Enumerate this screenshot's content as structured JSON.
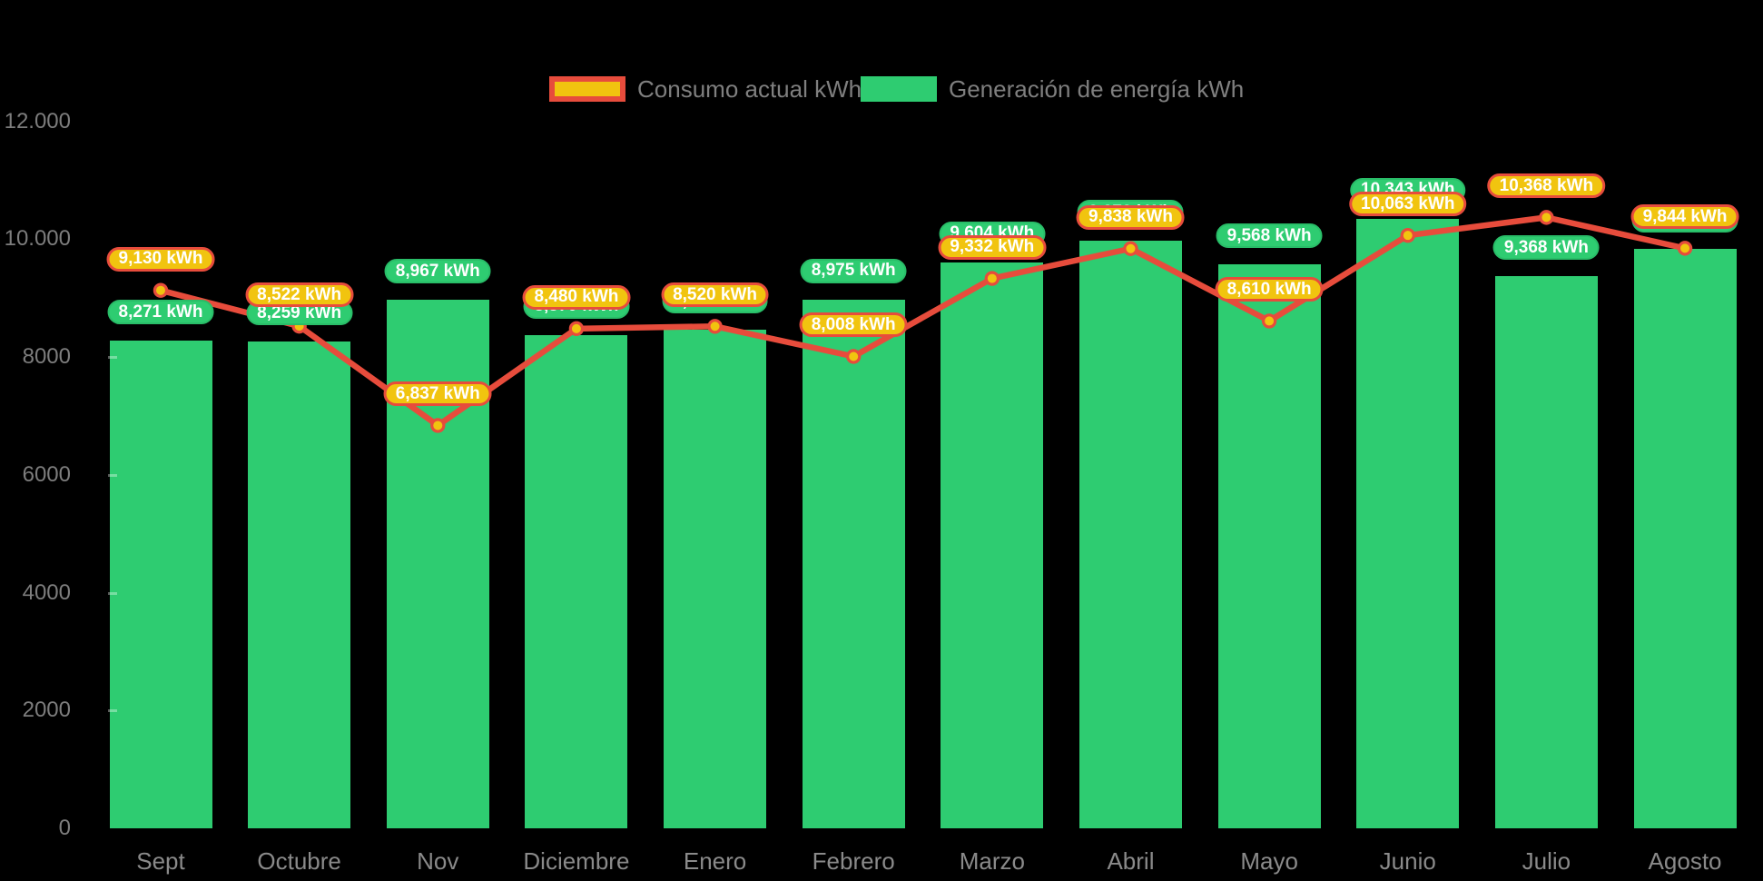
{
  "legend": {
    "items": [
      {
        "label": "Consumo actual kWh",
        "swatch_color": "#f1c40f",
        "swatch_border": "#e74c3c"
      },
      {
        "label": "Generación de energía kWh",
        "swatch_color": "#2ecc71",
        "swatch_border": null
      }
    ]
  },
  "chart_data": {
    "type": "bar",
    "subtype": "bar-line-combo",
    "title": "",
    "categories": [
      "Sept",
      "Octubre",
      "Nov",
      "Diciembre",
      "Enero",
      "Febrero",
      "Marzo",
      "Abril",
      "Mayo",
      "Junio",
      "Julio",
      "Agosto"
    ],
    "series": [
      {
        "name": "Consumo actual kWh",
        "type": "line",
        "line_color": "#e74c3c",
        "point_fill": "#f1c40f",
        "point_border": "#e74c3c",
        "values": [
          9130,
          8522,
          6837,
          8480,
          8520,
          8008,
          9332,
          9838,
          8610,
          10063,
          10368,
          9844
        ],
        "labels": [
          "9,130 kWh",
          "8,522 kWh",
          "6,837 kWh",
          "8,480 kWh",
          "8,520 kWh",
          "8,008 kWh",
          "9,332 kWh",
          "9,838 kWh",
          "8,610 kWh",
          "10,063 kWh",
          "10,368 kWh",
          "9,844 kWh"
        ]
      },
      {
        "name": "Generación de energía kWh",
        "type": "bar",
        "bar_color": "#2ecc71",
        "values": [
          8271,
          8259,
          8967,
          8370,
          8460,
          8975,
          9604,
          9973,
          9568,
          10343,
          9368,
          9835
        ],
        "labels": [
          "8,271 kWh",
          "8,259 kWh",
          "8,967 kWh",
          "8,370 kWh",
          "8,460 kWh",
          "8,975 kWh",
          "9,604 kWh",
          "9,973 kWh",
          "9,568 kWh",
          "10,343 kWh",
          "9,368 kWh",
          "9,835 kWh"
        ]
      }
    ],
    "y_axis": {
      "tick_labels": [
        "12.000",
        "10.000",
        "8000",
        "6000",
        "4000",
        "2000",
        "0"
      ],
      "tick_values": [
        12000,
        10000,
        8000,
        6000,
        4000,
        2000,
        0
      ],
      "min": 0,
      "max": 12400,
      "grid": false
    },
    "x_axis": {
      "labels": [
        "Sept",
        "Octubre",
        "Nov",
        "Diciembre",
        "Enero",
        "Febrero",
        "Marzo",
        "Abril",
        "Mayo",
        "Junio",
        "Julio",
        "Agosto"
      ]
    },
    "legend_position": "top",
    "data_label_unit": "kWh"
  },
  "colors": {
    "background": "#000000",
    "bar_green": "#2ecc71",
    "line_red": "#e74c3c",
    "point_yellow": "#f1c40f",
    "axis_text": "#7d7d7d",
    "month_text": "#8a8a8a",
    "badge_text": "#ffffff"
  }
}
